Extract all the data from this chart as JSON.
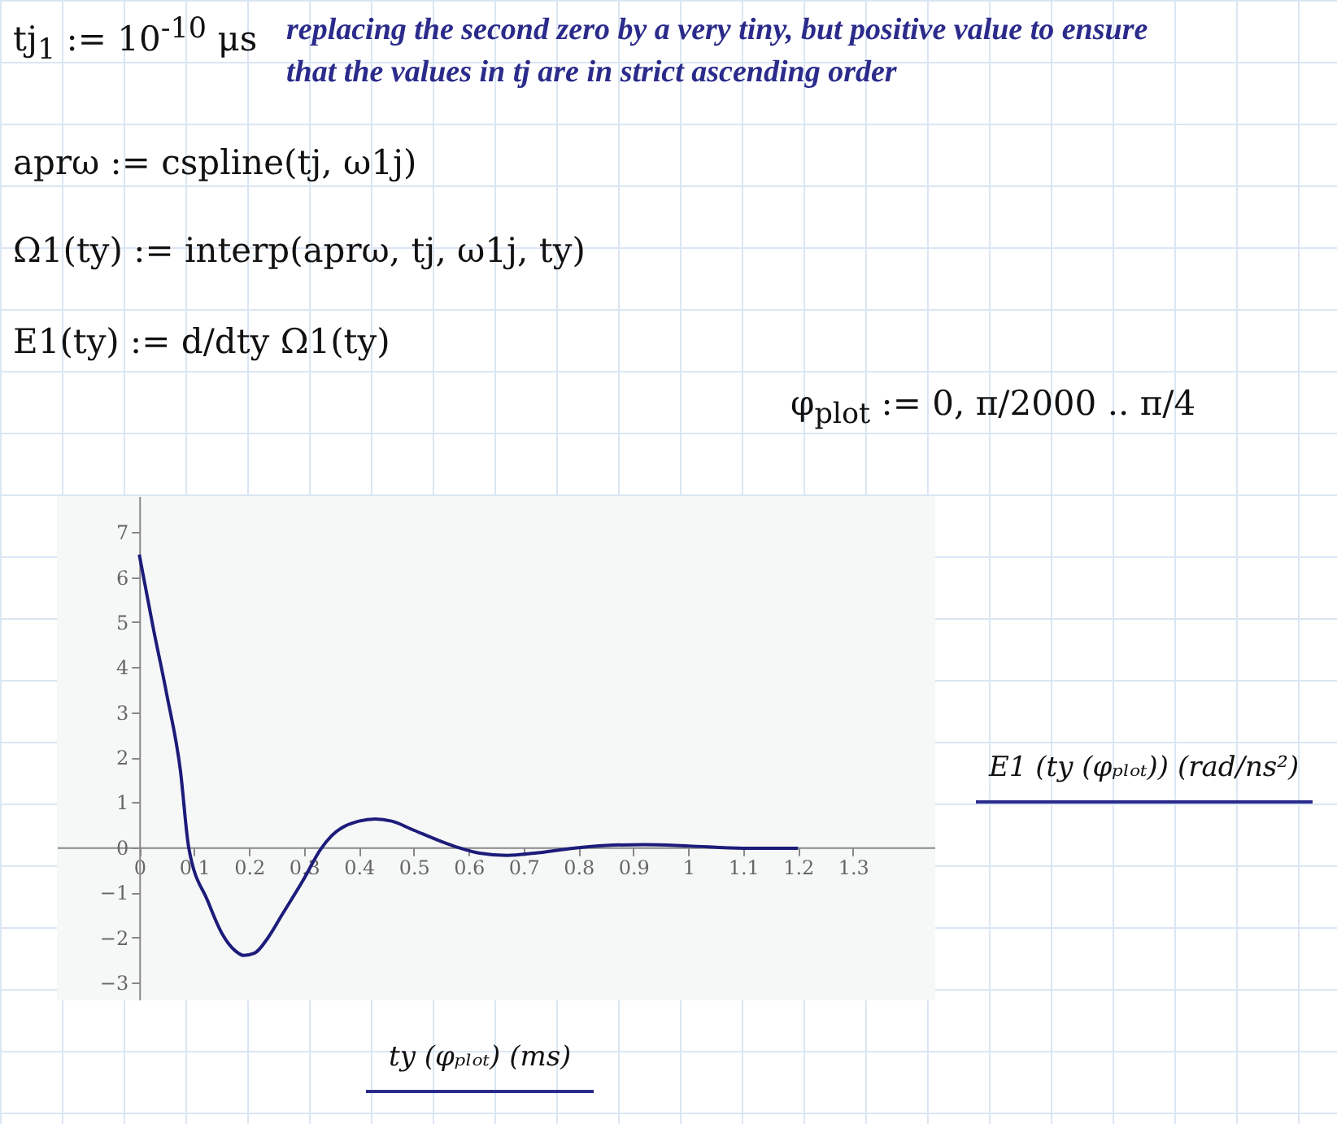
{
  "chart_data": {
    "type": "line",
    "xlabel": "ty (φₚₗₒₜ) (ms)",
    "ylabel": "E1 (ty (φₚₗₒₜ)) (rad/ns²)",
    "annotations": [
      "tj$_{1}$ := 10$^{-10}$ μs",
      "replacing the second zero by a very tiny, but positive value to ensure",
      "that the values in tj are in strict ascending order",
      "aprω := cspline(tj, ω1j)",
      "Ω1(ty) := interp(aprω, tj, ω1j, ty)",
      "E1(ty) := d/dty Ω1(ty)",
      "φ$_{plot}$ := 0, π/2000 .. π/4"
    ],
    "series": [
      {
        "color": "#1c1c7a",
        "x": [
          0,
          0.025,
          0.05,
          0.075,
          0.09,
          0.125,
          0.15,
          0.175,
          0.19,
          0.21,
          0.235,
          0.26,
          0.3,
          0.33,
          0.35,
          0.4,
          0.43,
          0.46,
          0.5,
          0.55,
          0.58,
          0.62,
          0.67,
          0.72,
          0.79,
          0.85,
          0.92,
          1.0,
          1.1,
          1.2
        ],
        "values": [
          6.5,
          4.9,
          3.4,
          1.7,
          0,
          -1.2,
          -1.9,
          -2.3,
          -2.4,
          -2.35,
          -2.0,
          -1.5,
          -0.7,
          -0.05,
          0.25,
          0.58,
          0.63,
          0.58,
          0.38,
          0.13,
          0,
          -0.13,
          -0.18,
          -0.13,
          -0.02,
          0.04,
          0.06,
          0.03,
          -0.02,
          -0.02
        ]
      }
    ],
    "xlim": [
      -0.15,
      1.45
    ],
    "ylim": [
      -3.4,
      7.8
    ],
    "xticks": [
      0,
      0.1,
      0.2,
      0.3,
      0.4,
      0.5,
      0.6,
      0.7,
      0.8,
      0.9,
      1,
      1.1,
      1.2,
      1.3
    ],
    "yticks": [
      -3,
      -2,
      -1,
      0,
      1,
      2,
      3,
      4,
      5,
      6,
      7
    ],
    "grid": false
  }
}
